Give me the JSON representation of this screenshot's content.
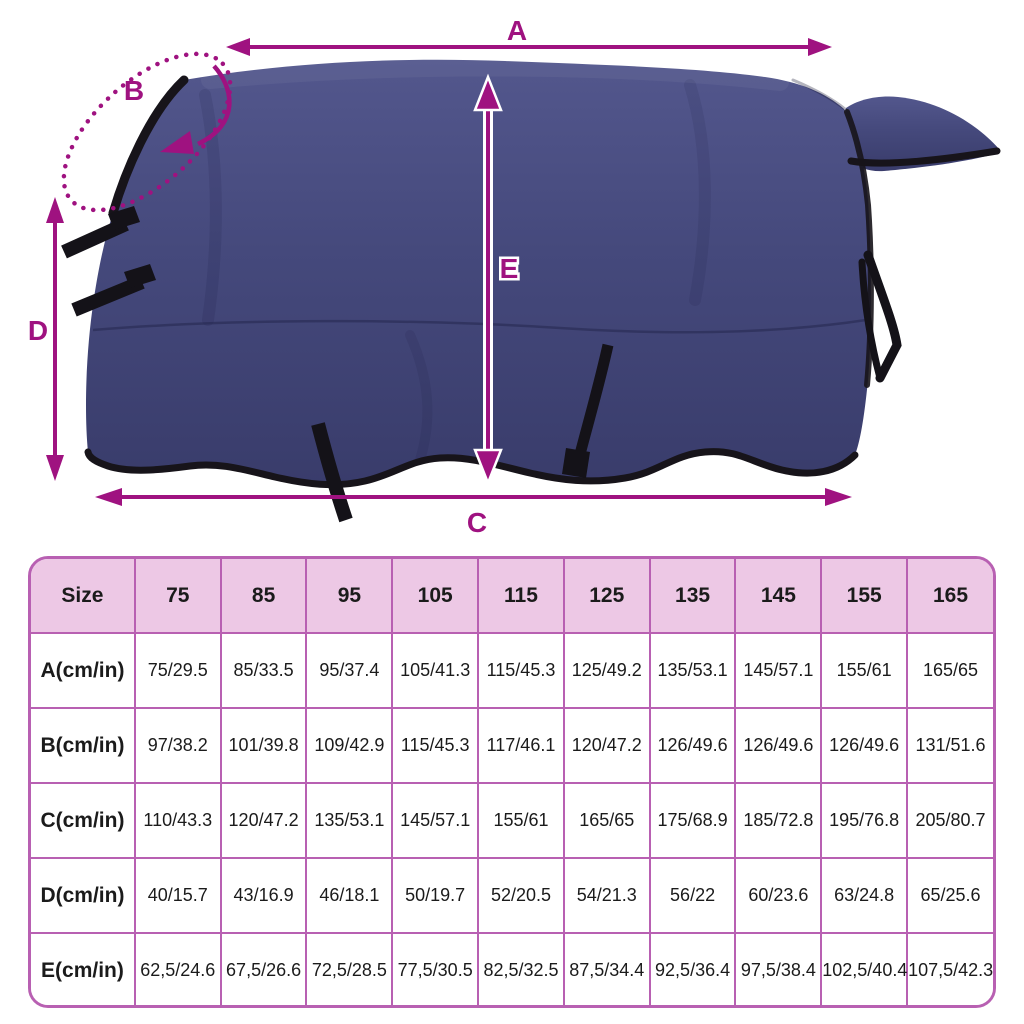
{
  "diagram": {
    "labels": {
      "a": "A",
      "b": "B",
      "c": "C",
      "d": "D",
      "e": "E"
    },
    "colors": {
      "dimension_accent": "#9f1280",
      "blanket_navy": "#45497c",
      "trim_black": "#17141a",
      "table_border": "#b860b2",
      "table_header_bg": "#edc8e5"
    }
  },
  "table": {
    "header": [
      "Size",
      "75",
      "85",
      "95",
      "105",
      "115",
      "125",
      "135",
      "145",
      "155",
      "165"
    ],
    "rows": [
      {
        "label": "A(cm/in)",
        "values": [
          "75/29.5",
          "85/33.5",
          "95/37.4",
          "105/41.3",
          "115/45.3",
          "125/49.2",
          "135/53.1",
          "145/57.1",
          "155/61",
          "165/65"
        ]
      },
      {
        "label": "B(cm/in)",
        "values": [
          "97/38.2",
          "101/39.8",
          "109/42.9",
          "115/45.3",
          "117/46.1",
          "120/47.2",
          "126/49.6",
          "126/49.6",
          "126/49.6",
          "131/51.6"
        ]
      },
      {
        "label": "C(cm/in)",
        "values": [
          "110/43.3",
          "120/47.2",
          "135/53.1",
          "145/57.1",
          "155/61",
          "165/65",
          "175/68.9",
          "185/72.8",
          "195/76.8",
          "205/80.7"
        ]
      },
      {
        "label": "D(cm/in)",
        "values": [
          "40/15.7",
          "43/16.9",
          "46/18.1",
          "50/19.7",
          "52/20.5",
          "54/21.3",
          "56/22",
          "60/23.6",
          "63/24.8",
          "65/25.6"
        ]
      },
      {
        "label": "E(cm/in)",
        "values": [
          "62,5/24.6",
          "67,5/26.6",
          "72,5/28.5",
          "77,5/30.5",
          "82,5/32.5",
          "87,5/34.4",
          "92,5/36.4",
          "97,5/38.4",
          "102,5/40.4",
          "107,5/42.3"
        ]
      }
    ]
  }
}
